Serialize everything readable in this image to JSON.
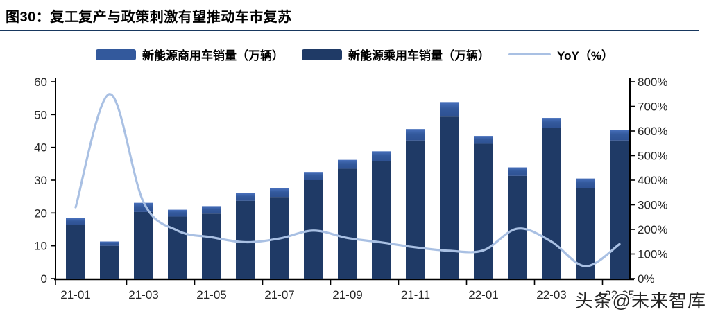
{
  "figure": {
    "title": "图30：复工复产与政策刺激有望推动车市复苏"
  },
  "legend": [
    {
      "label": "新能源商用车销量（万辆）",
      "color": "#33599C",
      "type": "swatch"
    },
    {
      "label": "新能源乘用车销量（万辆）",
      "color": "#1F3A66",
      "type": "swatch"
    },
    {
      "label": "YoY（%）",
      "color": "#A9C0E3",
      "type": "line"
    }
  ],
  "watermark": "头条@未来智库",
  "chart_data": {
    "type": "bar",
    "subtype": "stacked bars with smooth line overlay (dual axis)",
    "categories": [
      "21-01",
      "21-02",
      "21-03",
      "21-04",
      "21-05",
      "21-06",
      "21-07",
      "21-08",
      "21-09",
      "21-10",
      "21-11",
      "21-12",
      "22-01",
      "22-02",
      "22-03",
      "22-04",
      "22-05"
    ],
    "series": [
      {
        "name": "新能源乘用车销量（万辆）",
        "type": "bar",
        "stack": "total",
        "axis": "left",
        "color": "#1F3A66",
        "values": [
          16.4,
          10.0,
          20.3,
          18.9,
          19.8,
          23.7,
          24.9,
          30.0,
          33.5,
          35.8,
          42.1,
          49.4,
          41.1,
          31.3,
          45.9,
          27.5,
          42.1
        ]
      },
      {
        "name": "新能源商用车销量（万辆）",
        "type": "bar",
        "stack": "total",
        "axis": "left",
        "color": "#33599C",
        "values": [
          2.0,
          1.3,
          2.8,
          2.1,
          2.3,
          2.3,
          2.6,
          2.5,
          2.7,
          3.0,
          3.5,
          4.4,
          2.4,
          2.6,
          3.1,
          3.0,
          3.3
        ]
      },
      {
        "name": "YoY（%）",
        "type": "line",
        "axis": "right",
        "color": "#A9C0E3",
        "values": [
          290,
          750,
          310,
          195,
          168,
          148,
          163,
          195,
          165,
          147,
          127,
          113,
          115,
          203,
          150,
          50,
          140
        ]
      }
    ],
    "left_axis": {
      "min": 0,
      "max": 60,
      "step": 10,
      "ticks": [
        "0",
        "10",
        "20",
        "30",
        "40",
        "50",
        "60"
      ]
    },
    "right_axis": {
      "min": 0,
      "max": 800,
      "step": 100,
      "ticks": [
        "0%",
        "100%",
        "200%",
        "300%",
        "400%",
        "500%",
        "600%",
        "700%",
        "800%"
      ]
    },
    "x_tick_labels": [
      "21-01",
      "21-03",
      "21-05",
      "21-07",
      "21-09",
      "21-11",
      "22-01",
      "22-03",
      "22-05"
    ],
    "grid": false,
    "legend_position": "top",
    "title": "图30：复工复产与政策刺激有望推动车市复苏"
  }
}
